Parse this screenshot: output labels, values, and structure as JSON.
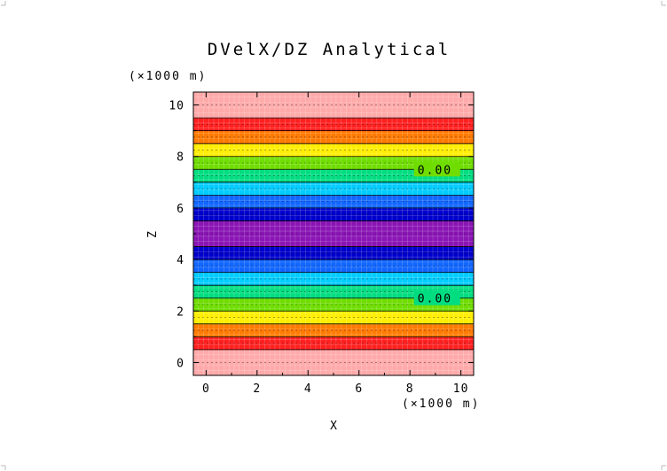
{
  "chart_data": {
    "type": "heatmap",
    "title": "DVelX/DZ Analytical",
    "xlabel": "X",
    "ylabel": "Z",
    "x_unit_label": "(×1000 m)",
    "y_unit_label": "(×1000 m)",
    "xlim": [
      -0.5,
      10.5
    ],
    "ylim": [
      -0.5,
      10.5
    ],
    "x_ticks": [
      0,
      2,
      4,
      6,
      8,
      10
    ],
    "y_ticks": [
      0,
      2,
      4,
      6,
      8,
      10
    ],
    "x_tick_labels": [
      "0",
      "2",
      "4",
      "6",
      "8",
      "10"
    ],
    "y_tick_labels": [
      "0",
      "2",
      "4",
      "6",
      "8",
      "10"
    ],
    "variation": "field varies only with Z (horizontal bands), symmetric about Z = 5",
    "band_edges_z": [
      -0.5,
      0.5,
      1.0,
      1.5,
      2.0,
      2.5,
      3.0,
      3.5,
      4.0,
      4.5,
      5.5,
      6.0,
      6.5,
      7.0,
      7.5,
      8.0,
      8.5,
      9.0,
      9.5,
      10.5
    ],
    "band_colors": [
      "#ffaaaa",
      "#ff2020",
      "#ff7a00",
      "#ffee00",
      "#6fdd00",
      "#00dd80",
      "#00ccff",
      "#1166ff",
      "#0000cc",
      "#8a14b4",
      "#0000cc",
      "#1166ff",
      "#00ccff",
      "#00dd80",
      "#6fdd00",
      "#ffee00",
      "#ff7a00",
      "#ff2020",
      "#ffaaaa"
    ],
    "contour_lines": [
      {
        "z": 2.5,
        "label": "0.00",
        "label_x": 8.3
      },
      {
        "z": 7.5,
        "label": "0.00",
        "label_x": 8.3
      }
    ],
    "grid": true
  }
}
